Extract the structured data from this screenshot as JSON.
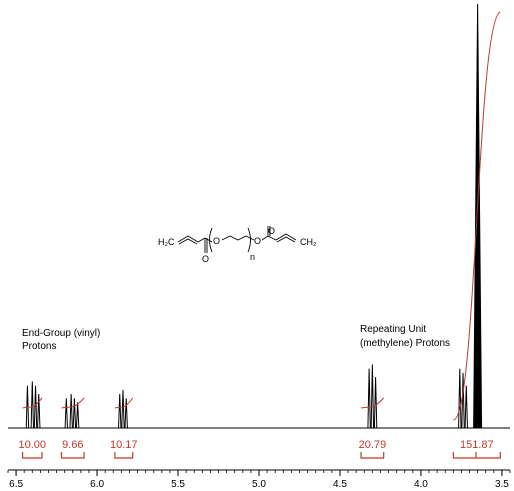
{
  "chart_data": {
    "type": "line",
    "xlabel": "",
    "ylabel": "",
    "x_axis_reversed": true,
    "xlim": [
      6.55,
      3.45
    ],
    "x_ticks": [
      "6.5",
      "6.0",
      "5.5",
      "5.0",
      "4.5",
      "4.0",
      "3.5"
    ],
    "x_tick_values": [
      6.5,
      6.0,
      5.5,
      5.0,
      4.5,
      4.0,
      3.5
    ],
    "grid": false,
    "peaks": [
      {
        "ppm": 6.43,
        "height": 0.1
      },
      {
        "ppm": 6.4,
        "height": 0.11
      },
      {
        "ppm": 6.38,
        "height": 0.1
      },
      {
        "ppm": 6.36,
        "height": 0.08
      },
      {
        "ppm": 6.19,
        "height": 0.07
      },
      {
        "ppm": 6.16,
        "height": 0.08
      },
      {
        "ppm": 6.14,
        "height": 0.07
      },
      {
        "ppm": 6.12,
        "height": 0.06
      },
      {
        "ppm": 5.86,
        "height": 0.08
      },
      {
        "ppm": 5.84,
        "height": 0.09
      },
      {
        "ppm": 5.82,
        "height": 0.07
      },
      {
        "ppm": 4.32,
        "height": 0.14
      },
      {
        "ppm": 4.3,
        "height": 0.15
      },
      {
        "ppm": 4.28,
        "height": 0.12
      },
      {
        "ppm": 3.76,
        "height": 0.14
      },
      {
        "ppm": 3.74,
        "height": 0.13
      },
      {
        "ppm": 3.72,
        "height": 0.1
      },
      {
        "ppm": 3.65,
        "height": 1.0
      }
    ],
    "integrals": [
      {
        "label": "10.00",
        "from": 6.46,
        "to": 6.34
      },
      {
        "label": "9.66",
        "from": 6.22,
        "to": 6.08
      },
      {
        "label": "10.17",
        "from": 5.89,
        "to": 5.78
      },
      {
        "label": "20.79",
        "from": 4.37,
        "to": 4.23
      },
      {
        "label": "151.87",
        "from": 3.8,
        "to": 3.51
      }
    ],
    "annotations": [
      {
        "id": "end-group",
        "lines": [
          "End-Group (vinyl)",
          "Protons"
        ]
      },
      {
        "id": "repeating",
        "lines": [
          "Repeating Unit",
          "(methylene) Protons"
        ]
      }
    ],
    "structure": {
      "left_group": "H₂C",
      "right_group": "CH₂",
      "oxygen": "O",
      "repeat": "n"
    },
    "colors": {
      "spectrum": "#000000",
      "integral": "#c0392b"
    }
  }
}
